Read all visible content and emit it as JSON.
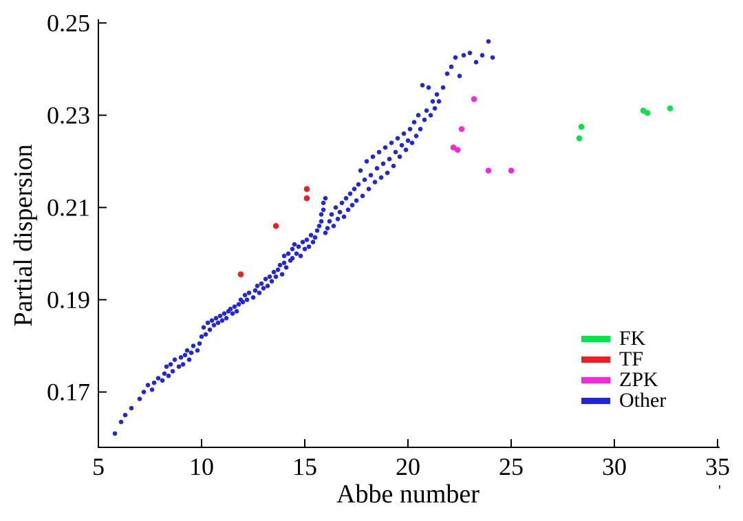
{
  "figure": {
    "background": "#ffffff",
    "stray_mark": "'"
  },
  "chart_data": {
    "type": "scatter",
    "title": "",
    "xlabel": "Abbe number",
    "ylabel": "Partial dispersion",
    "xlim": [
      5,
      35
    ],
    "ylim": [
      0.158,
      0.2505
    ],
    "x_ticks": [
      5,
      10,
      15,
      20,
      25,
      30,
      35
    ],
    "x_tick_labels": [
      "5",
      "10",
      "15",
      "20",
      "25",
      "30",
      "35"
    ],
    "y_ticks": [
      0.17,
      0.19,
      0.21,
      0.23,
      0.25
    ],
    "y_tick_labels": [
      "0.17",
      "0.19",
      "0.21",
      "0.23",
      "0.25"
    ],
    "grid": false,
    "legend_position": "lower right",
    "axis_color": "#000000",
    "series": [
      {
        "name": "FK",
        "color": "#0ae24b",
        "marker_size": 4.3,
        "points": [
          [
            28.3,
            0.225
          ],
          [
            28.4,
            0.2275
          ],
          [
            31.4,
            0.231
          ],
          [
            31.6,
            0.2305
          ],
          [
            32.7,
            0.2315
          ]
        ]
      },
      {
        "name": "TF",
        "color": "#e82220",
        "marker_size": 4.3,
        "points": [
          [
            11.9,
            0.1955
          ],
          [
            13.6,
            0.206
          ],
          [
            15.1,
            0.212
          ],
          [
            15.1,
            0.214
          ]
        ]
      },
      {
        "name": "ZPK",
        "color": "#f32bd4",
        "marker_size": 4.3,
        "points": [
          [
            22.2,
            0.223
          ],
          [
            22.4,
            0.2225
          ],
          [
            22.6,
            0.227
          ],
          [
            23.2,
            0.2335
          ],
          [
            23.9,
            0.218
          ],
          [
            25.0,
            0.218
          ]
        ]
      },
      {
        "name": "Other",
        "color": "#2127d6",
        "marker_size": 3.3,
        "points": [
          [
            5.8,
            0.161
          ],
          [
            6.1,
            0.1635
          ],
          [
            6.3,
            0.165
          ],
          [
            6.6,
            0.1665
          ],
          [
            7.0,
            0.1685
          ],
          [
            7.2,
            0.17
          ],
          [
            7.4,
            0.1715
          ],
          [
            7.6,
            0.1705
          ],
          [
            7.7,
            0.172
          ],
          [
            7.9,
            0.173
          ],
          [
            8.1,
            0.1725
          ],
          [
            8.2,
            0.174
          ],
          [
            8.3,
            0.1755
          ],
          [
            8.4,
            0.1735
          ],
          [
            8.5,
            0.176
          ],
          [
            8.6,
            0.1745
          ],
          [
            8.7,
            0.177
          ],
          [
            8.9,
            0.1755
          ],
          [
            9.0,
            0.1775
          ],
          [
            9.1,
            0.176
          ],
          [
            9.2,
            0.178
          ],
          [
            9.3,
            0.179
          ],
          [
            9.4,
            0.177
          ],
          [
            9.5,
            0.1785
          ],
          [
            9.6,
            0.18
          ],
          [
            9.8,
            0.179
          ],
          [
            9.9,
            0.1805
          ],
          [
            10.0,
            0.182
          ],
          [
            10.1,
            0.184
          ],
          [
            10.2,
            0.1825
          ],
          [
            10.3,
            0.185
          ],
          [
            10.4,
            0.1835
          ],
          [
            10.5,
            0.1855
          ],
          [
            10.6,
            0.1845
          ],
          [
            10.7,
            0.186
          ],
          [
            10.8,
            0.185
          ],
          [
            10.9,
            0.1865
          ],
          [
            11.0,
            0.1855
          ],
          [
            11.1,
            0.187
          ],
          [
            11.2,
            0.186
          ],
          [
            11.3,
            0.1875
          ],
          [
            11.4,
            0.188
          ],
          [
            11.5,
            0.187
          ],
          [
            11.6,
            0.1885
          ],
          [
            11.7,
            0.1875
          ],
          [
            11.8,
            0.189
          ],
          [
            11.9,
            0.19
          ],
          [
            12.0,
            0.1895
          ],
          [
            12.1,
            0.191
          ],
          [
            12.2,
            0.19
          ],
          [
            12.3,
            0.1915
          ],
          [
            12.5,
            0.1905
          ],
          [
            12.6,
            0.192
          ],
          [
            12.7,
            0.193
          ],
          [
            12.8,
            0.1915
          ],
          [
            12.9,
            0.1935
          ],
          [
            13.0,
            0.1925
          ],
          [
            13.1,
            0.1945
          ],
          [
            13.2,
            0.193
          ],
          [
            13.3,
            0.195
          ],
          [
            13.4,
            0.194
          ],
          [
            13.5,
            0.196
          ],
          [
            13.6,
            0.195
          ],
          [
            13.7,
            0.1965
          ],
          [
            13.8,
            0.1975
          ],
          [
            13.9,
            0.1955
          ],
          [
            14.0,
            0.198
          ],
          [
            14.0,
            0.1995
          ],
          [
            14.1,
            0.197
          ],
          [
            14.2,
            0.2
          ],
          [
            14.3,
            0.1985
          ],
          [
            14.4,
            0.201
          ],
          [
            14.4,
            0.199
          ],
          [
            14.5,
            0.202
          ],
          [
            14.6,
            0.2
          ],
          [
            14.7,
            0.2015
          ],
          [
            14.8,
            0.1995
          ],
          [
            14.9,
            0.2025
          ],
          [
            15.0,
            0.201
          ],
          [
            15.1,
            0.203
          ],
          [
            15.2,
            0.2015
          ],
          [
            15.3,
            0.204
          ],
          [
            15.4,
            0.2025
          ],
          [
            15.5,
            0.2035
          ],
          [
            15.6,
            0.205
          ],
          [
            15.7,
            0.206
          ],
          [
            15.8,
            0.207
          ],
          [
            15.8,
            0.2085
          ],
          [
            15.9,
            0.2095
          ],
          [
            15.9,
            0.211
          ],
          [
            16.0,
            0.2045
          ],
          [
            16.0,
            0.212
          ],
          [
            16.1,
            0.2055
          ],
          [
            16.2,
            0.207
          ],
          [
            16.3,
            0.2085
          ],
          [
            16.4,
            0.206
          ],
          [
            16.5,
            0.21
          ],
          [
            16.6,
            0.2075
          ],
          [
            16.7,
            0.209
          ],
          [
            16.8,
            0.211
          ],
          [
            16.9,
            0.208
          ],
          [
            17.0,
            0.212
          ],
          [
            17.1,
            0.2095
          ],
          [
            17.2,
            0.213
          ],
          [
            17.3,
            0.2105
          ],
          [
            17.4,
            0.214
          ],
          [
            17.5,
            0.2115
          ],
          [
            17.6,
            0.215
          ],
          [
            17.7,
            0.218
          ],
          [
            17.8,
            0.2125
          ],
          [
            17.9,
            0.216
          ],
          [
            18.0,
            0.22
          ],
          [
            18.1,
            0.214
          ],
          [
            18.2,
            0.217
          ],
          [
            18.3,
            0.221
          ],
          [
            18.4,
            0.2155
          ],
          [
            18.5,
            0.2185
          ],
          [
            18.6,
            0.222
          ],
          [
            18.7,
            0.2165
          ],
          [
            18.8,
            0.2195
          ],
          [
            18.9,
            0.223
          ],
          [
            19.0,
            0.2175
          ],
          [
            19.1,
            0.2205
          ],
          [
            19.2,
            0.224
          ],
          [
            19.3,
            0.219
          ],
          [
            19.4,
            0.222
          ],
          [
            19.5,
            0.225
          ],
          [
            19.6,
            0.221
          ],
          [
            19.7,
            0.2235
          ],
          [
            19.8,
            0.226
          ],
          [
            19.9,
            0.2225
          ],
          [
            20.0,
            0.2245
          ],
          [
            20.1,
            0.227
          ],
          [
            20.2,
            0.224
          ],
          [
            20.3,
            0.2285
          ],
          [
            20.4,
            0.2255
          ],
          [
            20.5,
            0.23
          ],
          [
            20.6,
            0.227
          ],
          [
            20.7,
            0.2365
          ],
          [
            20.8,
            0.229
          ],
          [
            20.9,
            0.231
          ],
          [
            21.0,
            0.236
          ],
          [
            21.1,
            0.23
          ],
          [
            21.2,
            0.233
          ],
          [
            21.3,
            0.2315
          ],
          [
            21.4,
            0.2345
          ],
          [
            21.5,
            0.233
          ],
          [
            21.7,
            0.236
          ],
          [
            21.9,
            0.239
          ],
          [
            22.1,
            0.2405
          ],
          [
            22.3,
            0.2425
          ],
          [
            22.5,
            0.2385
          ],
          [
            22.7,
            0.243
          ],
          [
            23.0,
            0.2435
          ],
          [
            23.3,
            0.2415
          ],
          [
            23.6,
            0.243
          ],
          [
            23.9,
            0.246
          ],
          [
            24.1,
            0.2425
          ]
        ]
      }
    ]
  }
}
